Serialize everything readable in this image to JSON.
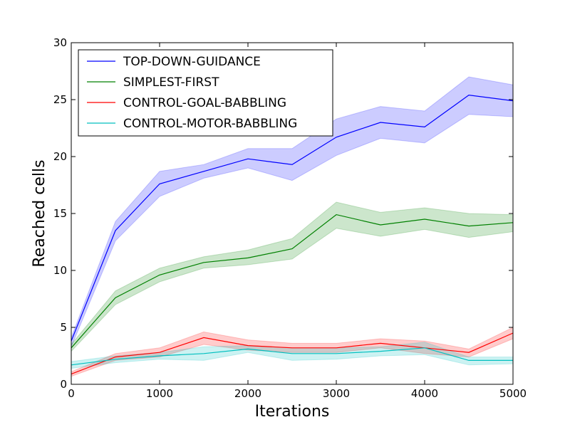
{
  "chart_data": {
    "type": "line",
    "title": "",
    "xlabel": "Iterations",
    "ylabel": "Reached cells",
    "xlim": [
      0,
      5000
    ],
    "ylim": [
      0,
      30
    ],
    "xticks": [
      0,
      1000,
      2000,
      3000,
      4000,
      5000
    ],
    "yticks": [
      0,
      5,
      10,
      15,
      20,
      25,
      30
    ],
    "grid": false,
    "legend_position": "top-left",
    "x": [
      0,
      500,
      1000,
      1500,
      2000,
      2500,
      3000,
      3500,
      4000,
      4500,
      5000
    ],
    "series": [
      {
        "name": "TOP-DOWN-GUIDANCE",
        "color": "#0000ff",
        "values": [
          3.8,
          13.5,
          17.6,
          18.7,
          19.8,
          19.3,
          21.7,
          23.0,
          22.6,
          25.4,
          24.9
        ],
        "lower": [
          3.3,
          12.6,
          16.5,
          18.1,
          19.0,
          17.9,
          20.1,
          21.6,
          21.2,
          23.7,
          23.5
        ],
        "upper": [
          4.1,
          14.3,
          18.7,
          19.3,
          20.7,
          20.7,
          23.3,
          24.4,
          24.0,
          27.0,
          26.3
        ]
      },
      {
        "name": "SIMPLEST-FIRST",
        "color": "#008000",
        "values": [
          3.2,
          7.6,
          9.6,
          10.7,
          11.1,
          11.9,
          14.9,
          14.0,
          14.5,
          13.9,
          14.2
        ],
        "lower": [
          2.9,
          7.0,
          9.0,
          10.2,
          10.5,
          11.0,
          13.7,
          13.0,
          13.6,
          12.9,
          13.4
        ],
        "upper": [
          3.5,
          8.2,
          10.2,
          11.2,
          11.8,
          12.8,
          16.0,
          15.1,
          15.5,
          15.0,
          14.9
        ]
      },
      {
        "name": "CONTROL-GOAL-BABBLING",
        "color": "#ff0000",
        "values": [
          0.9,
          2.4,
          2.8,
          4.1,
          3.4,
          3.2,
          3.2,
          3.6,
          3.2,
          2.8,
          4.5
        ],
        "lower": [
          0.7,
          2.1,
          2.4,
          3.5,
          3.0,
          2.8,
          2.8,
          3.2,
          2.7,
          2.4,
          4.0
        ],
        "upper": [
          1.1,
          2.7,
          3.2,
          4.6,
          3.9,
          3.6,
          3.6,
          4.0,
          3.8,
          3.1,
          5.0
        ]
      },
      {
        "name": "CONTROL-MOTOR-BABBLING",
        "color": "#00bfbf",
        "values": [
          1.7,
          2.2,
          2.5,
          2.7,
          3.1,
          2.7,
          2.7,
          2.9,
          3.2,
          2.1,
          2.1
        ],
        "lower": [
          1.4,
          1.9,
          2.2,
          2.1,
          2.8,
          2.1,
          2.2,
          2.5,
          2.6,
          1.7,
          1.8
        ],
        "upper": [
          2.0,
          2.5,
          2.8,
          3.3,
          3.4,
          3.2,
          3.2,
          3.3,
          3.7,
          2.4,
          2.4
        ]
      }
    ]
  }
}
